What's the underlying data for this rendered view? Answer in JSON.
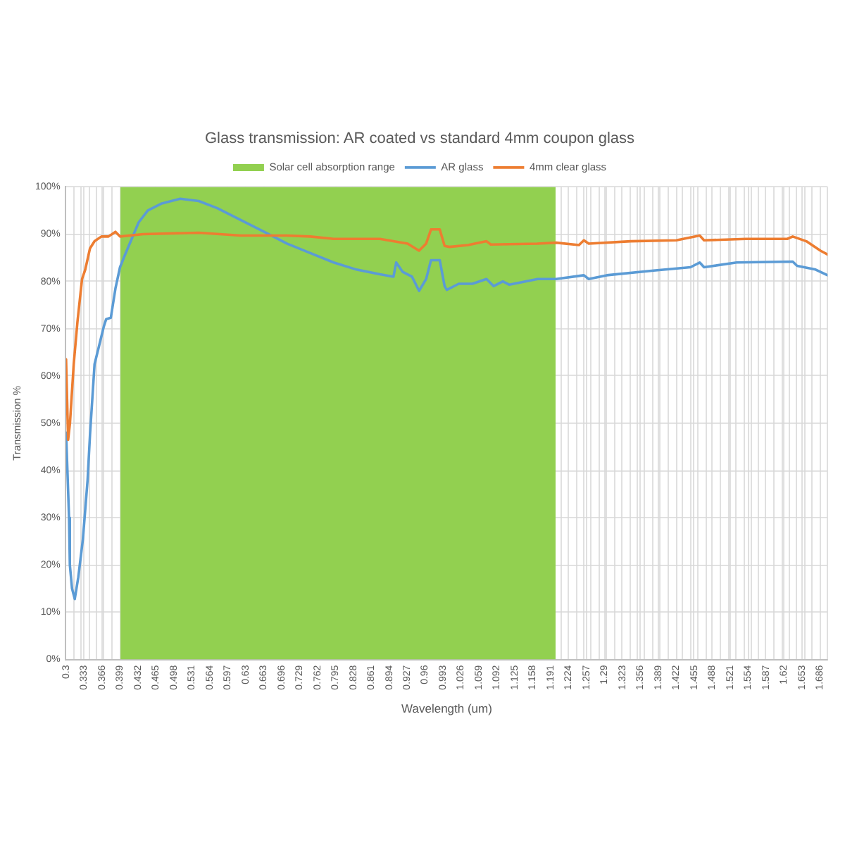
{
  "chart_data": {
    "type": "line",
    "title": "Glass transmission: AR coated vs standard 4mm coupon glass",
    "xlabel": "Wavelength (um)",
    "ylabel": "Transmission %",
    "series": [
      {
        "name": "Solar cell absorption range",
        "type": "area",
        "color": "#92d050",
        "x": [
          0.4,
          1.2
        ],
        "values": [
          100,
          100
        ]
      },
      {
        "name": "AR glass",
        "type": "line",
        "color": "#5b9bd5",
        "x": [
          0.3,
          0.3025,
          0.3055,
          0.307,
          0.311,
          0.316,
          0.3225,
          0.331,
          0.3396,
          0.344,
          0.3524,
          0.361,
          0.3695,
          0.3737,
          0.3823,
          0.3908,
          0.3992,
          0.4079,
          0.4207,
          0.4335,
          0.4504,
          0.476,
          0.51,
          0.544,
          0.578,
          0.621,
          0.664,
          0.706,
          0.749,
          0.792,
          0.834,
          0.877,
          0.902,
          0.907,
          0.919,
          0.936,
          0.949,
          0.962,
          0.971,
          0.987,
          0.996,
          1.0,
          1.022,
          1.047,
          1.073,
          1.086,
          1.103,
          1.115,
          1.167,
          1.201,
          1.252,
          1.261,
          1.294,
          1.38,
          1.448,
          1.465,
          1.473,
          1.533,
          1.636,
          1.644,
          1.678,
          1.7
        ],
        "values": [
          48,
          40,
          30,
          20,
          15,
          12.8,
          17.4,
          25.5,
          38,
          47.5,
          62.5,
          66.5,
          70.5,
          72,
          72.3,
          78.5,
          83,
          85.5,
          89,
          92.5,
          95,
          96.5,
          97.5,
          97,
          95.5,
          93,
          90.5,
          88,
          86,
          84,
          82.5,
          81.5,
          81,
          84,
          82,
          81,
          78,
          80.5,
          84.5,
          84.5,
          79,
          78.2,
          79.5,
          79.5,
          80.5,
          79,
          80,
          79.3,
          80.5,
          80.5,
          81.3,
          80.5,
          81.3,
          82.3,
          83,
          84,
          83,
          84,
          84.2,
          83.3,
          82.5,
          81.3
        ]
      },
      {
        "name": "4mm clear glass",
        "type": "line",
        "color": "#ed7d31",
        "x": [
          0.3,
          0.3038,
          0.3072,
          0.3141,
          0.321,
          0.3294,
          0.3353,
          0.344,
          0.3524,
          0.365,
          0.378,
          0.3908,
          0.3992,
          0.442,
          0.544,
          0.621,
          0.705,
          0.749,
          0.792,
          0.877,
          0.928,
          0.949,
          0.962,
          0.971,
          0.987,
          0.996,
          1.005,
          1.039,
          1.073,
          1.081,
          1.167,
          1.201,
          1.243,
          1.252,
          1.261,
          1.338,
          1.422,
          1.465,
          1.473,
          1.55,
          1.626,
          1.636,
          1.661,
          1.687,
          1.7
        ],
        "values": [
          63.5,
          46.5,
          50,
          62.5,
          71.5,
          80.5,
          82.5,
          87,
          88.5,
          89.5,
          89.5,
          90.5,
          89.5,
          90,
          90.3,
          89.7,
          89.7,
          89.5,
          89,
          89,
          88,
          86.5,
          88,
          91,
          91,
          87.5,
          87.3,
          87.7,
          88.5,
          87.8,
          88,
          88.2,
          87.7,
          88.7,
          88,
          88.5,
          88.7,
          89.7,
          88.7,
          89,
          89,
          89.5,
          88.5,
          86.5,
          85.7
        ]
      }
    ],
    "xlim": [
      0.3,
      1.7
    ],
    "xticks": [
      0.3,
      {
        "value": 0.314,
        "label": null
      },
      {
        "value": 0.328,
        "label": null
      },
      0.333,
      {
        "value": 0.342,
        "label": null
      },
      {
        "value": 0.356,
        "label": null
      },
      0.366,
      {
        "value": 0.37,
        "label": null
      },
      {
        "value": 0.384,
        "label": null
      },
      0.399,
      0.432,
      0.465,
      0.498,
      0.531,
      0.564,
      0.597,
      0.63,
      0.663,
      0.696,
      0.729,
      0.762,
      0.795,
      0.828,
      0.861,
      0.894,
      0.927,
      0.96,
      0.993,
      1.026,
      1.059,
      1.092,
      1.125,
      1.158,
      1.191,
      {
        "value": 1.21,
        "label": null
      },
      1.224,
      {
        "value": 1.238,
        "label": null
      },
      {
        "value": 1.252,
        "label": null
      },
      1.257,
      {
        "value": 1.266,
        "label": null
      },
      {
        "value": 1.28,
        "label": null
      },
      1.29,
      {
        "value": 1.294,
        "label": null
      },
      {
        "value": 1.308,
        "label": null
      },
      1.323,
      {
        "value": 1.336,
        "label": null
      },
      {
        "value": 1.35,
        "label": null
      },
      1.356,
      {
        "value": 1.364,
        "label": null
      },
      {
        "value": 1.378,
        "label": null
      },
      1.389,
      {
        "value": 1.392,
        "label": null
      },
      {
        "value": 1.406,
        "label": null
      },
      1.422,
      {
        "value": 1.434,
        "label": null
      },
      {
        "value": 1.448,
        "label": null
      },
      1.455,
      {
        "value": 1.462,
        "label": null
      },
      {
        "value": 1.476,
        "label": null
      },
      1.488,
      {
        "value": 1.504,
        "label": null
      },
      {
        "value": 1.518,
        "label": null
      },
      1.521,
      {
        "value": 1.532,
        "label": null
      },
      {
        "value": 1.546,
        "label": null
      },
      1.554,
      {
        "value": 1.56,
        "label": null
      },
      {
        "value": 1.574,
        "label": null
      },
      1.587,
      {
        "value": 1.602,
        "label": null
      },
      {
        "value": 1.616,
        "label": null
      },
      1.62,
      {
        "value": 1.63,
        "label": null
      },
      {
        "value": 1.644,
        "label": null
      },
      1.653,
      {
        "value": 1.658,
        "label": null
      },
      {
        "value": 1.672,
        "label": null
      },
      1.686,
      {
        "value": 1.7,
        "label": null
      }
    ],
    "ylim": [
      0,
      100
    ],
    "yticks": [
      {
        "value": 0,
        "label": "0%"
      },
      {
        "value": 10,
        "label": "10%"
      },
      {
        "value": 20,
        "label": "20%"
      },
      {
        "value": 30,
        "label": "30%"
      },
      {
        "value": 40,
        "label": "40%"
      },
      {
        "value": 50,
        "label": "50%"
      },
      {
        "value": 60,
        "label": "60%"
      },
      {
        "value": 70,
        "label": "70%"
      },
      {
        "value": 80,
        "label": "80%"
      },
      {
        "value": 90,
        "label": "90%"
      },
      {
        "value": 100,
        "label": "100%"
      }
    ],
    "grid": true,
    "legend": "top",
    "marker": "none"
  }
}
